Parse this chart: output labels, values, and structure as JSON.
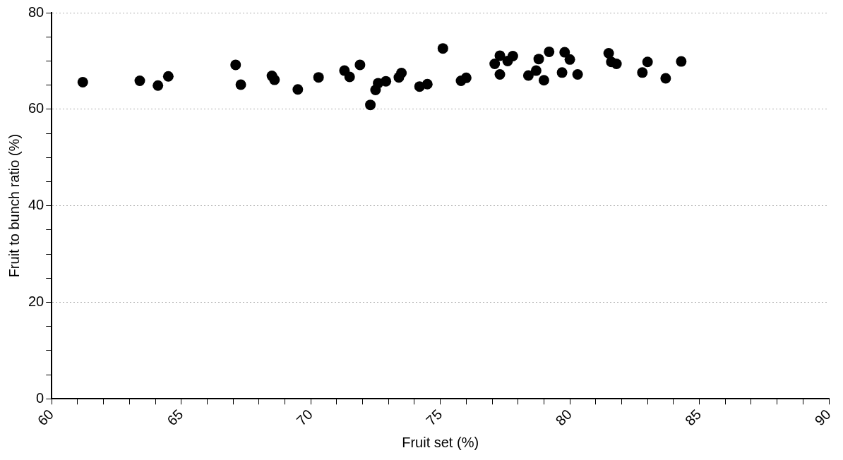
{
  "chart_data": {
    "type": "scatter",
    "xlabel": "Fruit set (%)",
    "ylabel": "Fruit to bunch ratio (%)",
    "xlim": [
      60,
      90
    ],
    "ylim": [
      0,
      80
    ],
    "xticks": [
      60,
      {
        "value": 61,
        "label": null
      },
      {
        "value": 62,
        "label": null
      },
      {
        "value": 63,
        "label": null
      },
      {
        "value": 64,
        "label": null
      },
      65,
      {
        "value": 66,
        "label": null
      },
      {
        "value": 67,
        "label": null
      },
      {
        "value": 68,
        "label": null
      },
      {
        "value": 69,
        "label": null
      },
      70,
      {
        "value": 71,
        "label": null
      },
      {
        "value": 72,
        "label": null
      },
      {
        "value": 73,
        "label": null
      },
      {
        "value": 74,
        "label": null
      },
      75,
      {
        "value": 76,
        "label": null
      },
      {
        "value": 77,
        "label": null
      },
      {
        "value": 78,
        "label": null
      },
      {
        "value": 79,
        "label": null
      },
      80,
      {
        "value": 81,
        "label": null
      },
      {
        "value": 82,
        "label": null
      },
      {
        "value": 83,
        "label": null
      },
      {
        "value": 84,
        "label": null
      },
      85,
      {
        "value": 86,
        "label": null
      },
      {
        "value": 87,
        "label": null
      },
      {
        "value": 88,
        "label": null
      },
      {
        "value": 89,
        "label": null
      },
      90
    ],
    "yticks": [
      0,
      {
        "value": 5,
        "label": null
      },
      {
        "value": 10,
        "label": null
      },
      {
        "value": 15,
        "label": null
      },
      20,
      {
        "value": 25,
        "label": null
      },
      {
        "value": 30,
        "label": null
      },
      {
        "value": 35,
        "label": null
      },
      40,
      {
        "value": 45,
        "label": null
      },
      {
        "value": 50,
        "label": null
      },
      {
        "value": 55,
        "label": null
      },
      60,
      {
        "value": 65,
        "label": null
      },
      {
        "value": 70,
        "label": null
      },
      {
        "value": 75,
        "label": null
      },
      80
    ],
    "grid": "y",
    "marker": "circle",
    "legend": false,
    "series": [
      {
        "color": "#000000",
        "x": [
          61.2,
          63.4,
          64.1,
          64.5,
          67.1,
          67.3,
          68.5,
          68.6,
          69.5,
          70.3,
          71.3,
          71.5,
          71.9,
          72.3,
          72.5,
          72.6,
          72.9,
          73.4,
          73.5,
          74.2,
          74.5,
          75.1,
          75.8,
          76.0,
          77.1,
          77.3,
          77.3,
          77.6,
          77.8,
          78.4,
          78.7,
          78.8,
          79.0,
          79.2,
          79.7,
          79.8,
          80.0,
          80.3,
          81.5,
          81.6,
          81.8,
          82.8,
          83.0,
          83.7,
          84.3
        ],
        "values": [
          65.6,
          65.9,
          64.9,
          66.8,
          69.2,
          65.1,
          66.9,
          66.1,
          64.1,
          66.6,
          68.0,
          66.7,
          69.2,
          60.9,
          64.0,
          65.4,
          65.8,
          66.6,
          67.5,
          64.7,
          65.2,
          72.6,
          65.9,
          66.5,
          69.4,
          71.1,
          67.2,
          70.0,
          71.0,
          67.0,
          68.0,
          70.4,
          66.0,
          71.9,
          67.6,
          71.8,
          70.3,
          67.2,
          71.6,
          69.8,
          69.4,
          67.6,
          69.8,
          66.4,
          69.9
        ]
      }
    ]
  }
}
